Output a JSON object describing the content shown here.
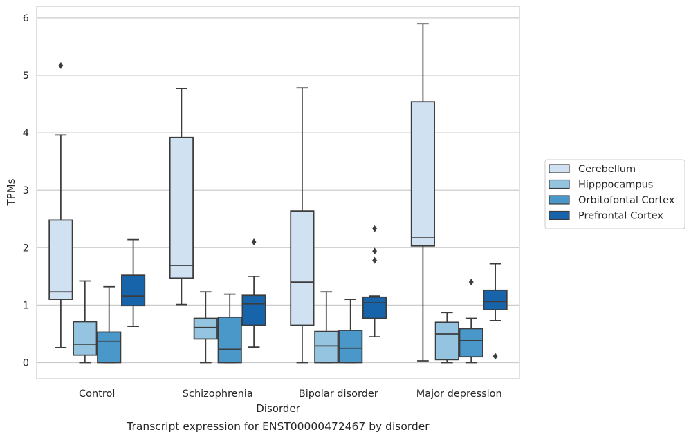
{
  "chart_data": {
    "type": "box",
    "caption": "Transcript expression for ENST00000472467 by disorder",
    "xlabel": "Disorder",
    "ylabel": "TPMs",
    "ylim": [
      -0.28,
      6.2
    ],
    "yticks": [
      0,
      1,
      2,
      3,
      4,
      5,
      6
    ],
    "grid": true,
    "legend_position": "right-center",
    "categories": [
      "Control",
      "Schizophrenia",
      "Bipolar disorder",
      "Major depression"
    ],
    "series": [
      {
        "name": "Cerebellum",
        "color": "#d0e1f2",
        "boxes": [
          {
            "whisker_low": 0.26,
            "q1": 1.1,
            "median": 1.23,
            "q3": 2.48,
            "whisker_high": 3.96,
            "outliers": [
              5.17
            ]
          },
          {
            "whisker_low": 1.01,
            "q1": 1.47,
            "median": 1.69,
            "q3": 3.92,
            "whisker_high": 4.77,
            "outliers": []
          },
          {
            "whisker_low": 0.0,
            "q1": 0.65,
            "median": 1.4,
            "q3": 2.64,
            "whisker_high": 4.78,
            "outliers": []
          },
          {
            "whisker_low": 0.03,
            "q1": 2.03,
            "median": 2.17,
            "q3": 4.54,
            "whisker_high": 5.9,
            "outliers": []
          }
        ]
      },
      {
        "name": "Hipppocampus",
        "color": "#94c4df",
        "boxes": [
          {
            "whisker_low": 0.0,
            "q1": 0.13,
            "median": 0.32,
            "q3": 0.71,
            "whisker_high": 1.42,
            "outliers": []
          },
          {
            "whisker_low": 0.0,
            "q1": 0.41,
            "median": 0.61,
            "q3": 0.77,
            "whisker_high": 1.23,
            "outliers": []
          },
          {
            "whisker_low": 0.0,
            "q1": 0.0,
            "median": 0.29,
            "q3": 0.54,
            "whisker_high": 1.23,
            "outliers": []
          },
          {
            "whisker_low": 0.0,
            "q1": 0.05,
            "median": 0.5,
            "q3": 0.7,
            "whisker_high": 0.87,
            "outliers": []
          }
        ]
      },
      {
        "name": "Orbitofontal Cortex",
        "color": "#4a98c9",
        "boxes": [
          {
            "whisker_low": 0.0,
            "q1": 0.0,
            "median": 0.37,
            "q3": 0.53,
            "whisker_high": 1.32,
            "outliers": []
          },
          {
            "whisker_low": 0.0,
            "q1": 0.0,
            "median": 0.23,
            "q3": 0.79,
            "whisker_high": 1.19,
            "outliers": []
          },
          {
            "whisker_low": 0.0,
            "q1": 0.0,
            "median": 0.25,
            "q3": 0.56,
            "whisker_high": 1.1,
            "outliers": []
          },
          {
            "whisker_low": 0.0,
            "q1": 0.1,
            "median": 0.38,
            "q3": 0.59,
            "whisker_high": 0.77,
            "outliers": [
              1.4
            ]
          }
        ]
      },
      {
        "name": "Prefrontal Cortex",
        "color": "#1764ab",
        "boxes": [
          {
            "whisker_low": 0.63,
            "q1": 0.99,
            "median": 1.16,
            "q3": 1.52,
            "whisker_high": 2.14,
            "outliers": []
          },
          {
            "whisker_low": 0.27,
            "q1": 0.65,
            "median": 1.02,
            "q3": 1.17,
            "whisker_high": 1.5,
            "outliers": [
              2.1
            ]
          },
          {
            "whisker_low": 0.45,
            "q1": 0.77,
            "median": 1.04,
            "q3": 1.14,
            "whisker_high": 1.16,
            "outliers": [
              1.78,
              1.94,
              2.33
            ]
          },
          {
            "whisker_low": 0.73,
            "q1": 0.92,
            "median": 1.06,
            "q3": 1.26,
            "whisker_high": 1.72,
            "outliers": [
              0.11
            ]
          }
        ]
      }
    ]
  }
}
